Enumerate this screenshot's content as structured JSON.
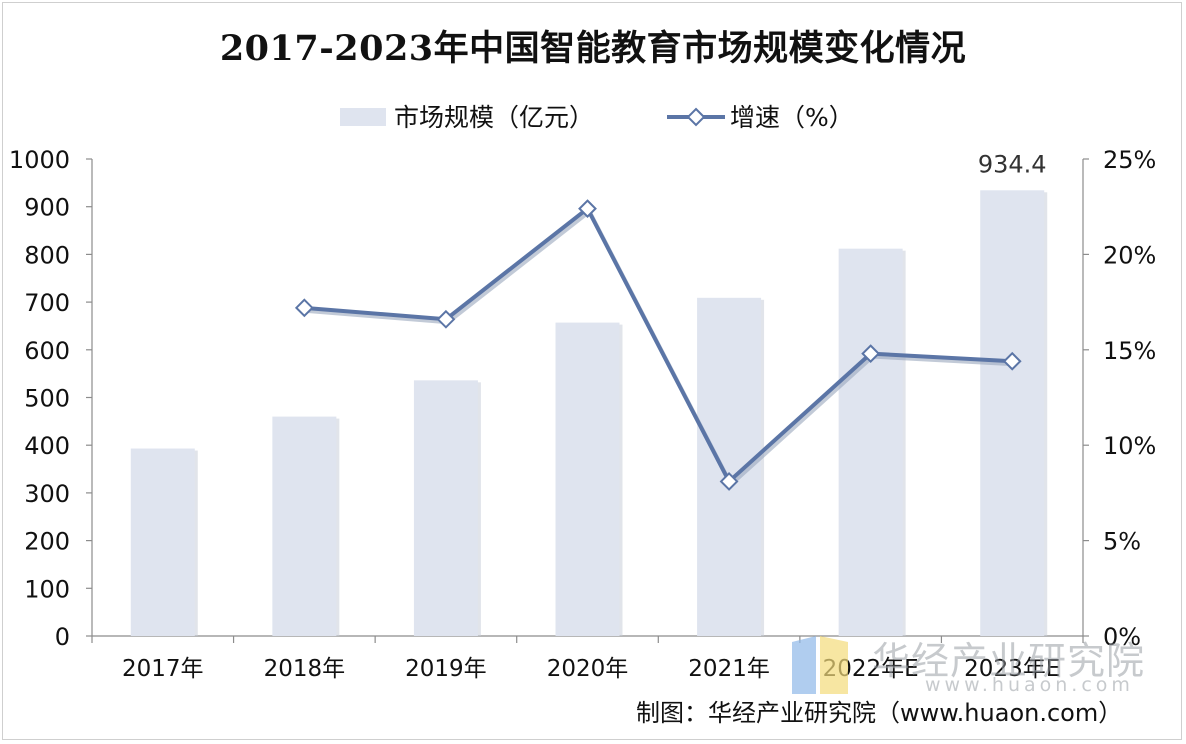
{
  "chart_data": {
    "type": "bar",
    "title": "2017-2023年中国智能教育市场规模变化情况",
    "categories": [
      "2017年",
      "2018年",
      "2019年",
      "2020年",
      "2021年",
      "2022年E",
      "2023年E"
    ],
    "series": [
      {
        "name": "市场规模（亿元）",
        "type": "bar",
        "axis": "left",
        "values": [
          393,
          460,
          536,
          657,
          709,
          812,
          934.4
        ]
      },
      {
        "name": "增速（%）",
        "type": "line",
        "axis": "right",
        "values": [
          null,
          17.2,
          16.6,
          22.4,
          8.1,
          14.8,
          14.4
        ]
      }
    ],
    "left_axis": {
      "min": 0,
      "max": 1000,
      "step": 100,
      "ticks": [
        "0",
        "100",
        "200",
        "300",
        "400",
        "500",
        "600",
        "700",
        "800",
        "900",
        "1000"
      ]
    },
    "right_axis": {
      "min": 0,
      "max": 25,
      "step": 5,
      "ticks": [
        "0%",
        "5%",
        "10%",
        "15%",
        "20%",
        "25%"
      ]
    },
    "data_labels": [
      {
        "category": "2023年E",
        "text": "934.4"
      }
    ],
    "legend": {
      "position": "top"
    },
    "grid": false,
    "colors": {
      "bar": "#dfe4ef",
      "line": "#5b75a6",
      "marker_fill": "#ffffff",
      "axis": "#8c8c8c",
      "text": "#111111"
    }
  },
  "source_text": "制图：华经产业研究院（www.huaon.com）",
  "watermark": {
    "name": "华经产业研究院",
    "url": "www.huaon.com"
  }
}
